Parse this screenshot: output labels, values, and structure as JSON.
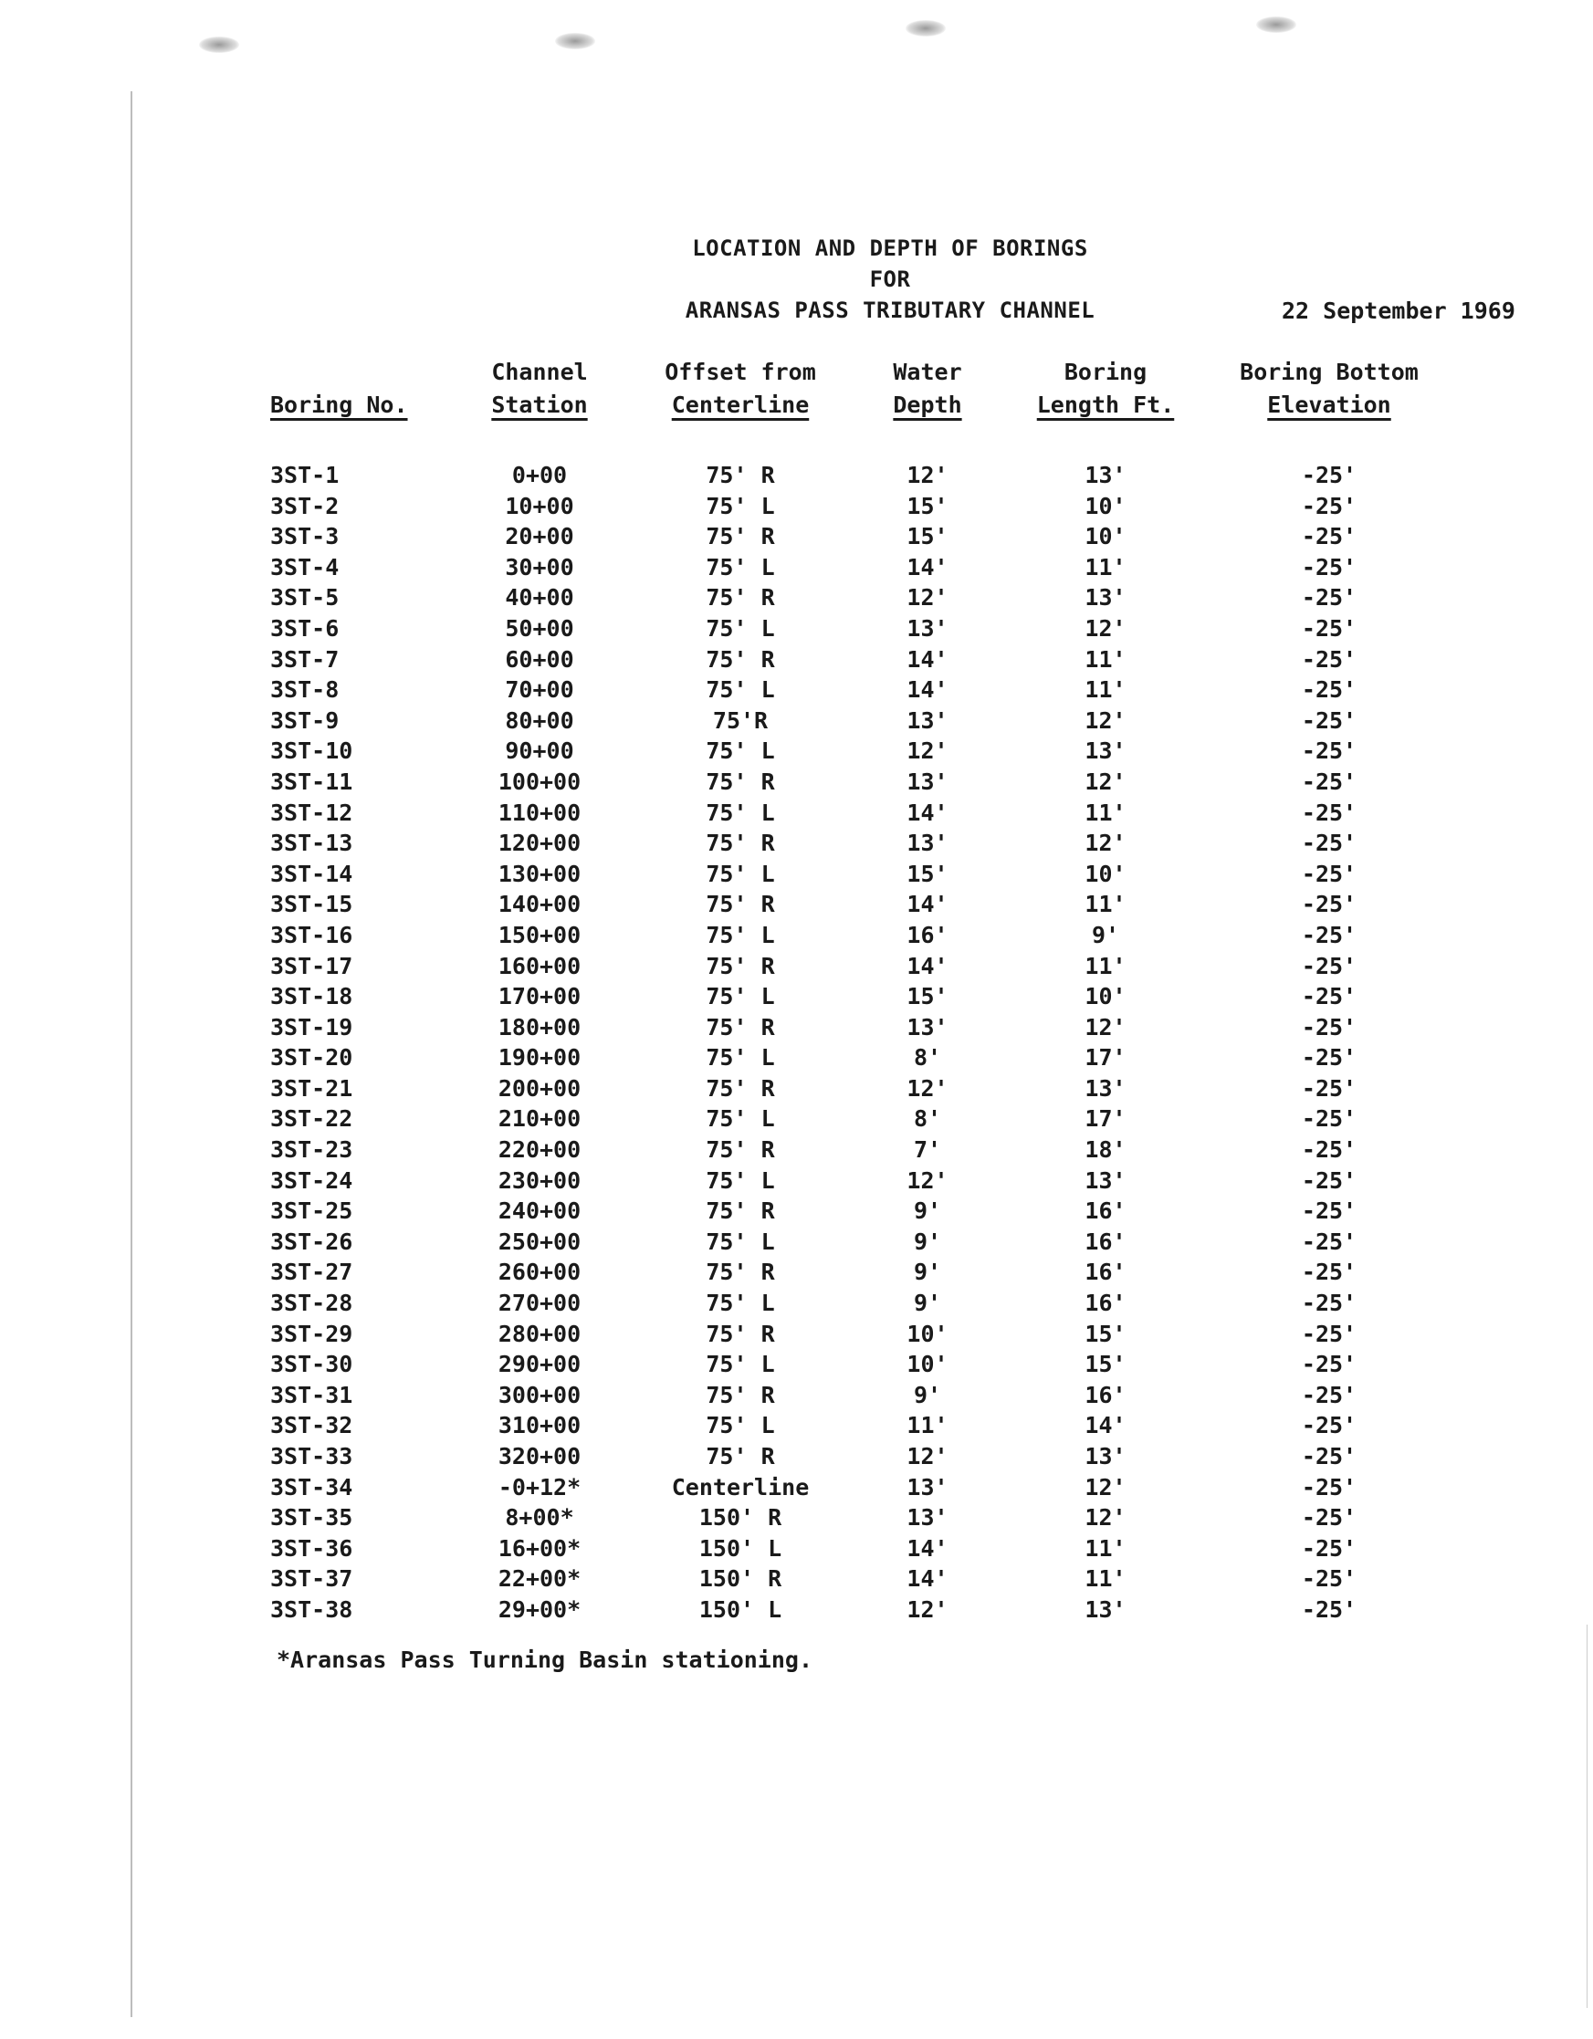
{
  "title": {
    "line1": "LOCATION AND DEPTH OF BORINGS",
    "line2": "FOR",
    "line3": "ARANSAS PASS TRIBUTARY CHANNEL"
  },
  "date": "22 September 1969",
  "columns": [
    {
      "top": "",
      "bottom": "Boring No."
    },
    {
      "top": "Channel",
      "bottom": "Station"
    },
    {
      "top": "Offset from",
      "bottom": "Centerline"
    },
    {
      "top": "Water",
      "bottom": "Depth"
    },
    {
      "top": "Boring",
      "bottom": "Length Ft."
    },
    {
      "top": "Boring Bottom",
      "bottom": "Elevation"
    }
  ],
  "rows": [
    [
      "3ST-1",
      "0+00",
      "75' R",
      "12'",
      "13'",
      "-25'"
    ],
    [
      "3ST-2",
      "10+00",
      "75' L",
      "15'",
      "10'",
      "-25'"
    ],
    [
      "3ST-3",
      "20+00",
      "75' R",
      "15'",
      "10'",
      "-25'"
    ],
    [
      "3ST-4",
      "30+00",
      "75' L",
      "14'",
      "11'",
      "-25'"
    ],
    [
      "3ST-5",
      "40+00",
      "75' R",
      "12'",
      "13'",
      "-25'"
    ],
    [
      "3ST-6",
      "50+00",
      "75' L",
      "13'",
      "12'",
      "-25'"
    ],
    [
      "3ST-7",
      "60+00",
      "75' R",
      "14'",
      "11'",
      "-25'"
    ],
    [
      "3ST-8",
      "70+00",
      "75' L",
      "14'",
      "11'",
      "-25'"
    ],
    [
      "3ST-9",
      "80+00",
      "75'R",
      "13'",
      "12'",
      "-25'"
    ],
    [
      "3ST-10",
      "90+00",
      "75' L",
      "12'",
      "13'",
      "-25'"
    ],
    [
      "3ST-11",
      "100+00",
      "75' R",
      "13'",
      "12'",
      "-25'"
    ],
    [
      "3ST-12",
      "110+00",
      "75' L",
      "14'",
      "11'",
      "-25'"
    ],
    [
      "3ST-13",
      "120+00",
      "75' R",
      "13'",
      "12'",
      "-25'"
    ],
    [
      "3ST-14",
      "130+00",
      "75' L",
      "15'",
      "10'",
      "-25'"
    ],
    [
      "3ST-15",
      "140+00",
      "75' R",
      "14'",
      "11'",
      "-25'"
    ],
    [
      "3ST-16",
      "150+00",
      "75' L",
      "16'",
      "9'",
      "-25'"
    ],
    [
      "3ST-17",
      "160+00",
      "75' R",
      "14'",
      "11'",
      "-25'"
    ],
    [
      "3ST-18",
      "170+00",
      "75' L",
      "15'",
      "10'",
      "-25'"
    ],
    [
      "3ST-19",
      "180+00",
      "75' R",
      "13'",
      "12'",
      "-25'"
    ],
    [
      "3ST-20",
      "190+00",
      "75' L",
      "8'",
      "17'",
      "-25'"
    ],
    [
      "3ST-21",
      "200+00",
      "75' R",
      "12'",
      "13'",
      "-25'"
    ],
    [
      "3ST-22",
      "210+00",
      "75' L",
      "8'",
      "17'",
      "-25'"
    ],
    [
      "3ST-23",
      "220+00",
      "75' R",
      "7'",
      "18'",
      "-25'"
    ],
    [
      "3ST-24",
      "230+00",
      "75' L",
      "12'",
      "13'",
      "-25'"
    ],
    [
      "3ST-25",
      "240+00",
      "75' R",
      "9'",
      "16'",
      "-25'"
    ],
    [
      "3ST-26",
      "250+00",
      "75' L",
      "9'",
      "16'",
      "-25'"
    ],
    [
      "3ST-27",
      "260+00",
      "75' R",
      "9'",
      "16'",
      "-25'"
    ],
    [
      "3ST-28",
      "270+00",
      "75' L",
      "9'",
      "16'",
      "-25'"
    ],
    [
      "3ST-29",
      "280+00",
      "75' R",
      "10'",
      "15'",
      "-25'"
    ],
    [
      "3ST-30",
      "290+00",
      "75' L",
      "10'",
      "15'",
      "-25'"
    ],
    [
      "3ST-31",
      "300+00",
      "75' R",
      "9'",
      "16'",
      "-25'"
    ],
    [
      "3ST-32",
      "310+00",
      "75' L",
      "11'",
      "14'",
      "-25'"
    ],
    [
      "3ST-33",
      "320+00",
      "75' R",
      "12'",
      "13'",
      "-25'"
    ],
    [
      "3ST-34",
      "-0+12*",
      "Centerline",
      "13'",
      "12'",
      "-25'"
    ],
    [
      "3ST-35",
      "8+00*",
      "150' R",
      "13'",
      "12'",
      "-25'"
    ],
    [
      "3ST-36",
      "16+00*",
      "150' L",
      "14'",
      "11'",
      "-25'"
    ],
    [
      "3ST-37",
      "22+00*",
      "150' R",
      "14'",
      "11'",
      "-25'"
    ],
    [
      "3ST-38",
      "29+00*",
      "150' L",
      "12'",
      "13'",
      "-25'"
    ]
  ],
  "footnote": "*Aransas Pass Turning Basin stationing."
}
